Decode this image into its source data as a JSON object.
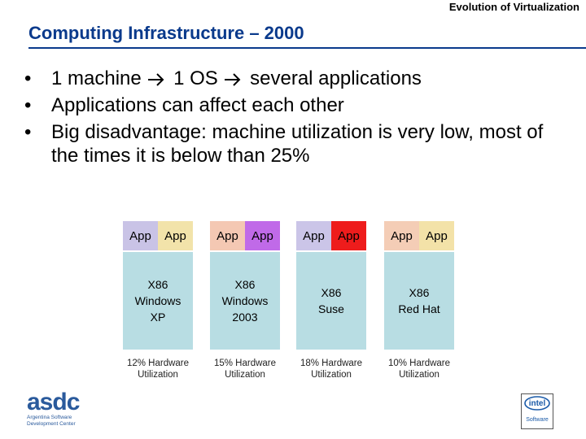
{
  "header": {
    "text": "Evolution of Virtualization"
  },
  "slide": {
    "title": "Computing Infrastructure – 2000"
  },
  "bullets": [
    {
      "parts": [
        "1 machine",
        "1 OS",
        "several applications"
      ]
    },
    {
      "text": "Applications can affect each other"
    },
    {
      "text": "Big disadvantage: machine utilization is very low, most of the times it is below than 25%"
    }
  ],
  "machines": [
    {
      "apps": [
        {
          "label": "App",
          "color": "#c9c3e6"
        },
        {
          "label": "App",
          "color": "#f2e3aa"
        }
      ],
      "os": "X86\nWindows\nXP",
      "util": "12% Hardware\nUtilization"
    },
    {
      "apps": [
        {
          "label": "App",
          "color": "#f4c8b3"
        },
        {
          "label": "App",
          "color": "#c06ae8"
        }
      ],
      "os": "X86\nWindows\n2003",
      "util": "15% Hardware\nUtilization"
    },
    {
      "apps": [
        {
          "label": "App",
          "color": "#cbc5e8"
        },
        {
          "label": "App",
          "color": "#ee1c1c"
        }
      ],
      "os": "X86\nSuse",
      "util": "18% Hardware\nUtilization"
    },
    {
      "apps": [
        {
          "label": "App",
          "color": "#f4cdb6"
        },
        {
          "label": "App",
          "color": "#f3e2a8"
        }
      ],
      "os": "X86\nRed Hat",
      "util": "10% Hardware\nUtilization"
    }
  ],
  "logos": {
    "asdc": {
      "name": "asdc",
      "line1": "Argentina Software",
      "line2": "Development Center"
    },
    "intel": {
      "name": "intel",
      "sub": "Software"
    }
  },
  "colors": {
    "title": "#0a3a8c",
    "os_box": "#b8dde3"
  }
}
